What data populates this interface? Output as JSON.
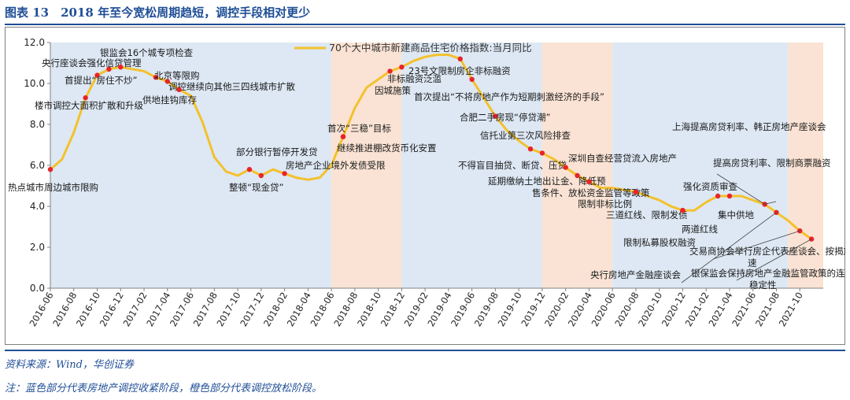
{
  "header": {
    "figure_title": "图表 13　2018 年至今宽松周期趋短，调控手段相对更少"
  },
  "footer": {
    "source": "资料来源：Wind，华创证券",
    "note": "注：蓝色部分代表房地产调控收紧阶段，橙色部分代表调控放松阶段。"
  },
  "colors": {
    "line": "#f3c12c",
    "tightening_band": "#dde8f4",
    "easing_band": "#fae3d4",
    "marker": "#e8242b",
    "title_blue": "#1f4e96"
  },
  "chart_data": {
    "type": "line",
    "ylim": [
      0,
      12
    ],
    "yticks": [
      "0.0",
      "2.0",
      "4.0",
      "6.0",
      "8.0",
      "10.0",
      "12.0"
    ],
    "xticks": [
      "2016-06",
      "2016-08",
      "2016-10",
      "2016-12",
      "2017-02",
      "2017-04",
      "2017-06",
      "2017-08",
      "2017-10",
      "2017-12",
      "2018-02",
      "2018-04",
      "2018-06",
      "2018-08",
      "2018-10",
      "2018-12",
      "2019-02",
      "2019-04",
      "2019-06",
      "2019-08",
      "2019-10",
      "2019-12",
      "2020-02",
      "2020-04",
      "2020-06",
      "2020-08",
      "2020-10",
      "2020-12",
      "2021-02",
      "2021-04",
      "2021-06",
      "2021-08",
      "2021-10"
    ],
    "bands": [
      {
        "start": "2016-06",
        "end": "2018-06",
        "kind": "tightening"
      },
      {
        "start": "2018-06",
        "end": "2018-12",
        "kind": "easing"
      },
      {
        "start": "2018-12",
        "end": "2019-12",
        "kind": "tightening"
      },
      {
        "start": "2019-12",
        "end": "2020-06",
        "kind": "easing"
      },
      {
        "start": "2020-06",
        "end": "2021-09",
        "kind": "tightening"
      },
      {
        "start": "2021-09",
        "end": "2021-12",
        "kind": "easing"
      }
    ],
    "series": [
      {
        "name": "70个大中城市新建商品住宅价格指数:当月同比",
        "x": [
          "2016-06",
          "2016-07",
          "2016-08",
          "2016-09",
          "2016-10",
          "2016-11",
          "2016-12",
          "2017-01",
          "2017-02",
          "2017-03",
          "2017-04",
          "2017-05",
          "2017-06",
          "2017-07",
          "2017-08",
          "2017-09",
          "2017-10",
          "2017-11",
          "2017-12",
          "2018-01",
          "2018-02",
          "2018-03",
          "2018-04",
          "2018-05",
          "2018-06",
          "2018-07",
          "2018-08",
          "2018-09",
          "2018-10",
          "2018-11",
          "2018-12",
          "2019-01",
          "2019-02",
          "2019-03",
          "2019-04",
          "2019-05",
          "2019-06",
          "2019-07",
          "2019-08",
          "2019-09",
          "2019-10",
          "2019-11",
          "2019-12",
          "2020-01",
          "2020-02",
          "2020-03",
          "2020-04",
          "2020-05",
          "2020-06",
          "2020-07",
          "2020-08",
          "2020-09",
          "2020-10",
          "2020-11",
          "2020-12",
          "2021-01",
          "2021-02",
          "2021-03",
          "2021-04",
          "2021-05",
          "2021-06",
          "2021-07",
          "2021-08",
          "2021-09",
          "2021-10",
          "2021-11"
        ],
        "values": [
          5.8,
          6.3,
          7.6,
          9.3,
          10.4,
          10.7,
          10.8,
          10.7,
          10.6,
          10.3,
          10.1,
          9.7,
          9.4,
          8.1,
          6.4,
          5.7,
          5.5,
          5.8,
          5.5,
          5.8,
          5.6,
          5.4,
          5.3,
          5.4,
          6.0,
          7.4,
          8.8,
          9.8,
          10.2,
          10.6,
          10.8,
          11.1,
          11.3,
          11.4,
          11.4,
          11.2,
          10.2,
          9.3,
          8.4,
          7.7,
          7.2,
          6.8,
          6.6,
          6.3,
          5.9,
          5.5,
          5.2,
          4.9,
          4.9,
          4.8,
          4.7,
          4.5,
          4.3,
          4.0,
          3.8,
          3.8,
          4.2,
          4.5,
          4.5,
          4.5,
          4.3,
          4.1,
          3.7,
          3.3,
          2.8,
          2.4
        ]
      }
    ],
    "annotations": [
      {
        "text": "热点城市周边城市限购",
        "x": "2016-06",
        "y": 5.8
      },
      {
        "text": "楼市调控大面积扩散和升级",
        "x": "2016-09",
        "y": 9.3
      },
      {
        "text": "首提出“房住不炒”",
        "x": "2016-10",
        "y": 10.4
      },
      {
        "text": "央行座谈会强化信贷管理",
        "x": "2016-11",
        "y": 10.7
      },
      {
        "text": "银监会16个城专项检查",
        "x": "2016-12",
        "y": 10.8
      },
      {
        "text": "北京等限购",
        "x": "2017-03",
        "y": 10.3
      },
      {
        "text": "调控继续向其他三四线城市扩散",
        "x": "2017-04",
        "y": 10.1
      },
      {
        "text": "供地挂钩库存",
        "x": "2017-05",
        "y": 9.7
      },
      {
        "text": "部分银行暂停开发贷",
        "x": "2017-11",
        "y": 5.8
      },
      {
        "text": "整顿“现金贷”",
        "x": "2017-12",
        "y": 5.5
      },
      {
        "text": "房地产企业境外发债受限",
        "x": "2018-02",
        "y": 5.6
      },
      {
        "text": "首次“三稳”目标",
        "x": "2018-07",
        "y": 7.4
      },
      {
        "text": "继续推进棚改货币化安置",
        "x": "2018-07",
        "y": 7.4
      },
      {
        "text": "因城施策",
        "x": "2018-11",
        "y": 10.6
      },
      {
        "text": "非标融资泛滥",
        "x": "2018-12",
        "y": 10.8
      },
      {
        "text": "23号文限制房企非标融资",
        "x": "2019-05",
        "y": 11.2
      },
      {
        "text": "首次提出“不将房地产作为短期刺激经济的手段”",
        "x": "2019-06",
        "y": 10.2
      },
      {
        "text": "合肥二手房现“停贷潮”",
        "x": "2019-08",
        "y": 8.4
      },
      {
        "text": "信托业第三次风险排查",
        "x": "2019-11",
        "y": 6.8
      },
      {
        "text": "不得盲目抽贷、断贷、压贷",
        "x": "2019-12",
        "y": 6.6
      },
      {
        "text": "深圳自查经营贷流入房地产",
        "x": "2020-02",
        "y": 5.9
      },
      {
        "text": "延期缴纳土地出让金、降低预售条件、放松资金监管等政策",
        "x": "2020-03",
        "y": 5.5
      },
      {
        "text": "限制非标比例",
        "x": "2020-04",
        "y": 5.2
      },
      {
        "text": "三道红线、限制发债",
        "x": "2020-08",
        "y": 4.7
      },
      {
        "text": "两道红线",
        "x": "2020-12",
        "y": 3.8
      },
      {
        "text": "限制私募股权融资",
        "x": "2020-12",
        "y": 3.8
      },
      {
        "text": "强化资质审查",
        "x": "2021-03",
        "y": 4.5
      },
      {
        "text": "集中供地",
        "x": "2021-04",
        "y": 4.5
      },
      {
        "text": "上海提高房贷利率、韩正房地产座谈会",
        "x": "2021-07",
        "y": 4.1
      },
      {
        "text": "提高房贷利率、限制商票融资",
        "x": "2021-07",
        "y": 4.1
      },
      {
        "text": "交易商协会举行房企代表座谈会、按揭放款提速",
        "x": "2021-10",
        "y": 2.8
      },
      {
        "text": "银保监会保持房地产金融监管政策的连续性、稳定性",
        "x": "2021-11",
        "y": 2.4
      },
      {
        "text": "央行房地产金融座谈会",
        "x": "2021-08",
        "y": 3.7
      }
    ]
  }
}
